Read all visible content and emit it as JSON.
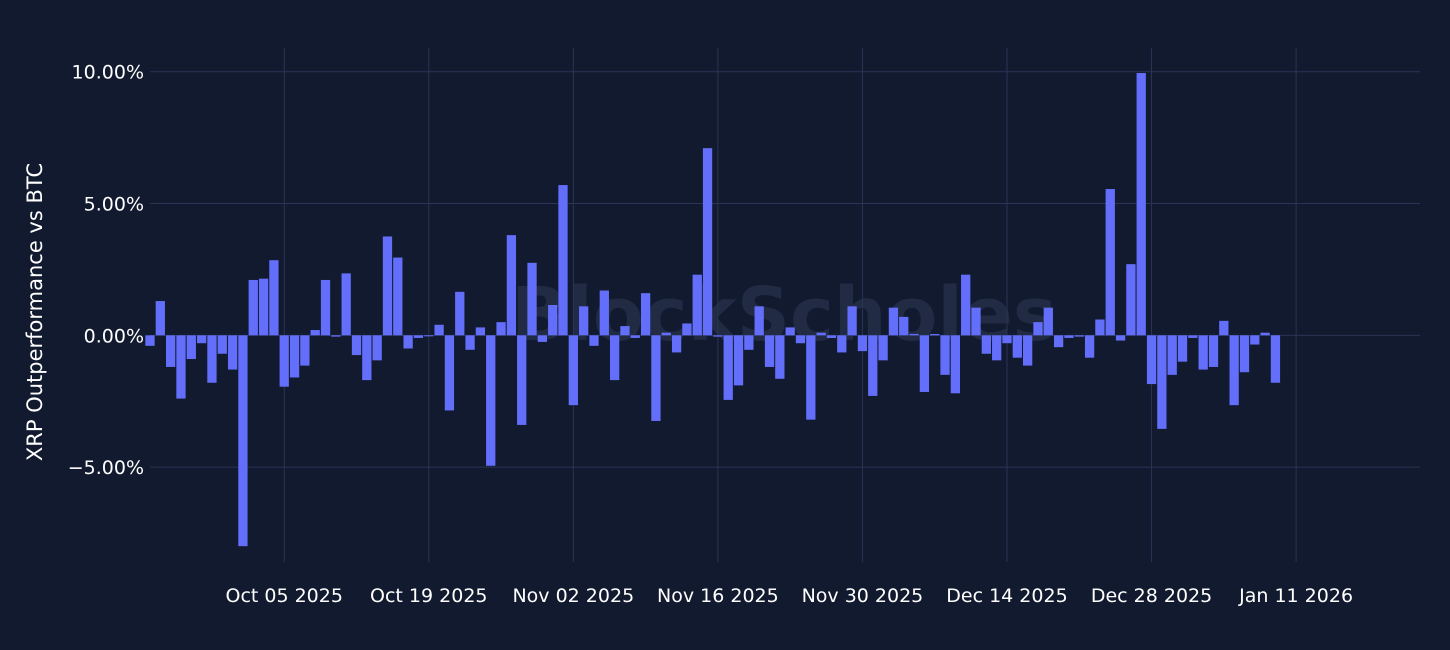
{
  "watermark": "BlockScholes",
  "colors": {
    "background": "#111a2e",
    "grid": "#2a3556",
    "bar": "#636efa",
    "text": "#ffffff"
  },
  "chart_data": {
    "type": "bar",
    "title": "",
    "xlabel": "",
    "ylabel": "XRP Outperformance vs BTC",
    "ylim": [
      -8.6,
      10.9
    ],
    "yticks": [
      10,
      5,
      0,
      -5
    ],
    "ytick_labels": [
      "10.00%",
      "5.00%",
      "0.00%",
      "−5.00%"
    ],
    "xticks": [
      "2025-10-05",
      "2025-10-19",
      "2025-11-02",
      "2025-11-16",
      "2025-11-30",
      "2025-12-14",
      "2025-12-28",
      "2026-01-11"
    ],
    "xtick_labels": [
      "Oct 05 2025",
      "Oct 19 2025",
      "Nov 02 2025",
      "Nov 16 2025",
      "Nov 30 2025",
      "Dec 14 2025",
      "Dec 28 2025",
      "Jan 11 2026"
    ],
    "x_start": "2025-09-22",
    "x_end": "2026-01-23",
    "grid": true,
    "legend": "none",
    "series": [
      {
        "name": "",
        "x_first": "2025-09-22",
        "values": [
          -0.4,
          1.3,
          -1.2,
          -2.4,
          -0.9,
          -0.3,
          -1.8,
          -0.7,
          -1.3,
          -8.0,
          2.1,
          2.15,
          2.85,
          -1.95,
          -1.6,
          -1.15,
          0.2,
          2.1,
          -0.05,
          2.35,
          -0.75,
          -1.7,
          -0.95,
          3.75,
          2.95,
          -0.5,
          -0.1,
          0.0,
          0.4,
          -2.85,
          1.65,
          -0.55,
          0.3,
          -4.95,
          0.5,
          3.8,
          -3.4,
          2.75,
          -0.25,
          1.15,
          5.7,
          -2.65,
          1.1,
          -0.4,
          1.7,
          -1.7,
          0.35,
          -0.1,
          1.6,
          -3.25,
          0.1,
          -0.65,
          0.45,
          2.3,
          7.1,
          -0.05,
          -2.45,
          -1.9,
          -0.55,
          1.1,
          -1.2,
          -1.65,
          0.3,
          -0.3,
          -3.2,
          0.1,
          -0.1,
          -0.65,
          1.1,
          -0.6,
          -2.3,
          -0.95,
          1.05,
          0.7,
          0.05,
          -2.15,
          0.05,
          -1.5,
          -2.2,
          2.3,
          1.05,
          -0.7,
          -0.95,
          -0.3,
          -0.85,
          -1.15,
          0.5,
          1.05,
          -0.45,
          -0.1,
          -0.05,
          -0.85,
          0.6,
          5.55,
          -0.2,
          2.7,
          9.95,
          -1.85,
          -3.55,
          -1.5,
          -1.0,
          -0.1,
          -1.3,
          -1.2,
          0.55,
          -2.65,
          -1.4,
          -0.35,
          0.1,
          -1.8
        ]
      }
    ]
  }
}
